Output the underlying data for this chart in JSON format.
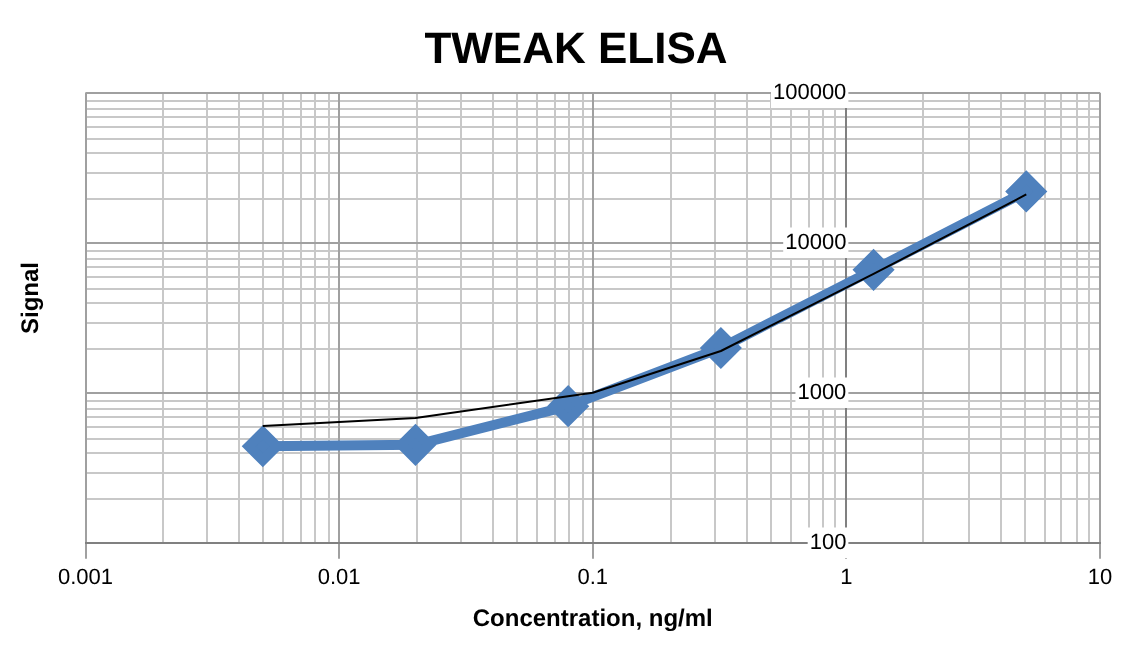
{
  "chart_data": {
    "type": "line",
    "title": "TWEAK ELISA",
    "xlabel": "Concentration, ng/ml",
    "ylabel": "Signal",
    "log": "xy",
    "grid": true,
    "legend": false,
    "xlim": [
      0.001,
      10
    ],
    "xticks": [
      0.001,
      0.01,
      0.1,
      1,
      10
    ],
    "ylim": [
      100,
      100000
    ],
    "yticks": [
      100,
      1000,
      10000,
      100000
    ],
    "series": [
      {
        "color": "#4f81bd",
        "marker": "diamond",
        "x": [
          0.005,
          0.02,
          0.08,
          0.32,
          1.28,
          5.12
        ],
        "values": [
          440,
          450,
          815,
          1990,
          6600,
          22000
        ]
      },
      {
        "color": "#000000",
        "marker": "none",
        "x": [
          0.005,
          0.02,
          0.1,
          0.32,
          1.28,
          5.12
        ],
        "values": [
          600,
          680,
          1000,
          1900,
          6200,
          21000
        ]
      }
    ]
  }
}
